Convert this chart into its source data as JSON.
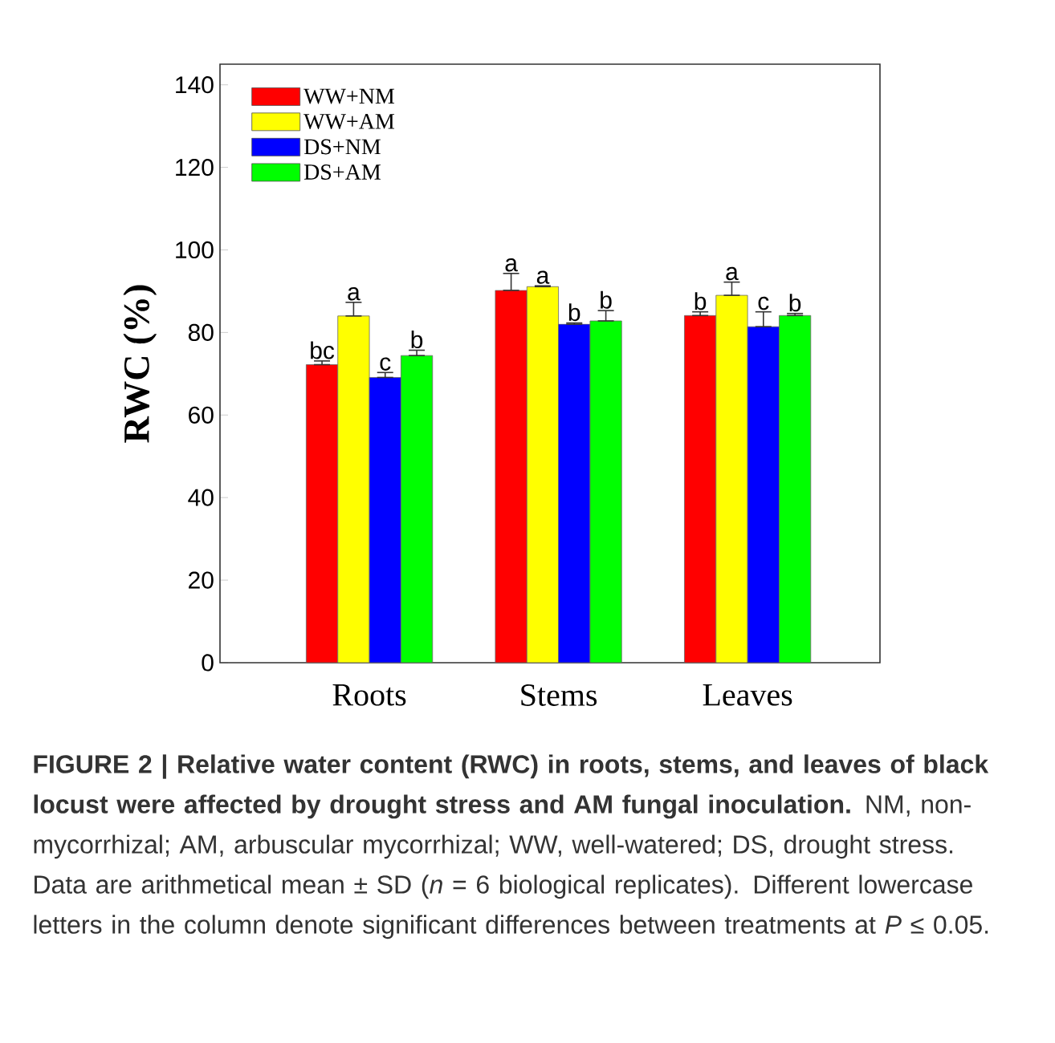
{
  "chart_data": {
    "type": "bar",
    "ylabel": "RWC (%)",
    "categories": [
      "Roots",
      "Stems",
      "Leaves"
    ],
    "series": [
      {
        "name": "WW+NM",
        "color": "#ff0000",
        "values": [
          72.2,
          90.2,
          84.1
        ],
        "errors": [
          [
            72.2,
            73.1
          ],
          [
            90.2,
            94.3
          ],
          [
            84.1,
            85.0
          ]
        ],
        "value_labels": [
          "bc",
          "a",
          "b"
        ]
      },
      {
        "name": "WW+AM",
        "color": "#ffff00",
        "values": [
          84.0,
          91.1,
          89.0
        ],
        "errors": [
          [
            84.0,
            87.3
          ],
          [
            91.1,
            91.3
          ],
          [
            89.0,
            92.2
          ]
        ],
        "value_labels": [
          "a",
          "a",
          "a"
        ]
      },
      {
        "name": "DS+NM",
        "color": "#0000ff",
        "values": [
          69.1,
          82.0,
          81.4
        ],
        "errors": [
          [
            69.1,
            70.3
          ],
          [
            82.0,
            82.3
          ],
          [
            81.4,
            85.0
          ]
        ],
        "value_labels": [
          "c",
          "b",
          "c"
        ]
      },
      {
        "name": "DS+AM",
        "color": "#00ff00",
        "values": [
          74.4,
          82.8,
          84.1
        ],
        "errors": [
          [
            74.4,
            75.7
          ],
          [
            82.8,
            85.3
          ],
          [
            84.1,
            84.6
          ]
        ],
        "value_labels": [
          "b",
          "b",
          "b"
        ]
      }
    ],
    "ylim": [
      0,
      145
    ],
    "yticks": [
      0,
      20,
      40,
      60,
      80,
      100,
      120,
      140
    ],
    "legend": "top left",
    "annotations": [
      "**FIGURE 2 | Relative water content (RWC) in roots, stems, and leaves of black locust were affected by drought stress and AM fungal inoculation.** NM, non-mycorrhizal; AM, arbuscular mycorrhizal; WW, well-watered; DS, drought stress. Data are arithmetical mean ± SD (*n* = 6 biological replicates). Different lowercase letters in the column denote significant differences between treatments at *P* ≤ 0.05."
    ]
  }
}
